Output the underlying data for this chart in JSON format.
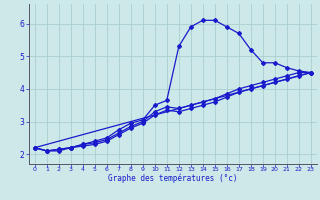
{
  "xlabel": "Graphe des températures (°c)",
  "background_color": "#cce8e8",
  "grid_color": "#aacece",
  "line_color": "#1a1acc",
  "axis_color": "#555566",
  "xlim": [
    -0.5,
    23.5
  ],
  "ylim": [
    1.7,
    6.6
  ],
  "yticks": [
    2,
    3,
    4,
    5,
    6
  ],
  "ytick_labels": [
    "2",
    "3",
    "4",
    "5",
    "6"
  ],
  "xticks": [
    0,
    1,
    2,
    3,
    4,
    5,
    6,
    7,
    8,
    9,
    10,
    11,
    12,
    13,
    14,
    15,
    16,
    17,
    18,
    19,
    20,
    21,
    22,
    23
  ],
  "xtick_labels": [
    "0",
    "1",
    "2",
    "3",
    "4",
    "5",
    "6",
    "7",
    "8",
    "9",
    "10",
    "11",
    "12",
    "13",
    "14",
    "15",
    "16",
    "17",
    "18",
    "19",
    "20",
    "21",
    "22",
    "23"
  ],
  "line1_x": [
    0,
    1,
    2,
    3,
    4,
    5,
    6,
    7,
    8,
    9,
    10,
    11,
    12,
    13,
    14,
    15,
    16,
    17,
    18,
    19,
    20,
    21,
    22,
    23
  ],
  "line1_y": [
    2.2,
    2.1,
    2.15,
    2.2,
    2.3,
    2.4,
    2.5,
    2.75,
    2.95,
    3.05,
    3.5,
    3.65,
    5.3,
    5.9,
    6.1,
    6.1,
    5.9,
    5.7,
    5.2,
    4.8,
    4.8,
    4.65,
    4.55,
    4.5
  ],
  "line2_x": [
    0,
    1,
    2,
    3,
    4,
    5,
    6,
    7,
    8,
    9,
    10,
    11,
    12,
    13,
    14,
    15,
    16,
    17,
    18,
    19,
    20,
    21,
    22,
    23
  ],
  "line2_y": [
    2.2,
    2.1,
    2.15,
    2.2,
    2.3,
    2.35,
    2.45,
    2.65,
    2.85,
    3.0,
    3.3,
    3.45,
    3.4,
    3.5,
    3.6,
    3.7,
    3.85,
    4.0,
    4.1,
    4.2,
    4.3,
    4.4,
    4.5,
    4.5
  ],
  "line3_x": [
    0,
    1,
    2,
    3,
    4,
    5,
    6,
    7,
    8,
    9,
    10,
    11,
    12,
    13,
    14,
    15,
    16,
    17,
    18,
    19,
    20,
    21,
    22,
    23
  ],
  "line3_y": [
    2.2,
    2.1,
    2.1,
    2.2,
    2.25,
    2.3,
    2.4,
    2.6,
    2.8,
    2.95,
    3.2,
    3.35,
    3.3,
    3.4,
    3.5,
    3.6,
    3.75,
    3.9,
    4.0,
    4.1,
    4.2,
    4.3,
    4.4,
    4.5
  ],
  "line4_x": [
    0,
    23
  ],
  "line4_y": [
    2.2,
    4.5
  ]
}
